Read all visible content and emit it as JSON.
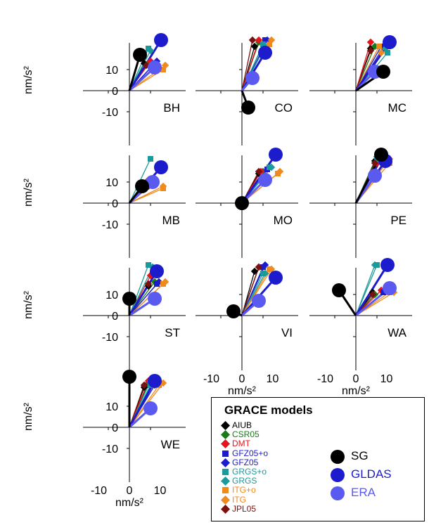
{
  "chart_data": {
    "type": "scatter",
    "description_axes": {
      "ylabel": "nm/s²",
      "xlabel": "nm/s²",
      "ticks": [
        "-10",
        "0",
        "10"
      ]
    },
    "legend": {
      "title": "GRACE models",
      "models": [
        {
          "name": "AIUB",
          "color": "#000000",
          "marker": "diamond"
        },
        {
          "name": "CSR05",
          "color": "#1a7a1a",
          "marker": "diamond"
        },
        {
          "name": "DMT",
          "color": "#e8141c",
          "marker": "diamond"
        },
        {
          "name": "GFZ05+o",
          "color": "#1c1ccc",
          "marker": "square"
        },
        {
          "name": "GFZ05",
          "color": "#1c1ccc",
          "marker": "diamond"
        },
        {
          "name": "GRGS+o",
          "color": "#1a9a9a",
          "marker": "square"
        },
        {
          "name": "GRGS",
          "color": "#1a9a9a",
          "marker": "diamond"
        },
        {
          "name": "ITG+o",
          "color": "#f08a1c",
          "marker": "square"
        },
        {
          "name": "ITG",
          "color": "#f08a1c",
          "marker": "diamond"
        },
        {
          "name": "JPL05",
          "color": "#7a1010",
          "marker": "diamond"
        }
      ],
      "references": [
        {
          "name": "SG",
          "color": "#000000"
        },
        {
          "name": "GLDAS",
          "color": "#1c1ccc"
        },
        {
          "name": "ERA",
          "color": "#5a5af0"
        }
      ]
    },
    "stations": [
      {
        "name": "BH",
        "row": 0,
        "col": 0,
        "sg": [
          5,
          17
        ],
        "gldas": [
          15,
          24
        ],
        "era": [
          12,
          11
        ],
        "models": [
          [
            7,
            13
          ],
          [
            9,
            13
          ],
          [
            10,
            14
          ],
          [
            12,
            13
          ],
          [
            13,
            14
          ],
          [
            9,
            20
          ],
          [
            10,
            19
          ],
          [
            16,
            10
          ],
          [
            17,
            12
          ],
          [
            8,
            12
          ]
        ]
      },
      {
        "name": "CO",
        "row": 0,
        "col": 1,
        "sg": [
          3,
          -8
        ],
        "gldas": [
          11,
          18
        ],
        "era": [
          5,
          6
        ],
        "models": [
          [
            6,
            21
          ],
          [
            8,
            23
          ],
          [
            8,
            24
          ],
          [
            11,
            24
          ],
          [
            12,
            24
          ],
          [
            10,
            22
          ],
          [
            11,
            21
          ],
          [
            13,
            22
          ],
          [
            14,
            24
          ],
          [
            5,
            24
          ]
        ]
      },
      {
        "name": "MC",
        "row": 0,
        "col": 2,
        "sg": [
          13,
          9
        ],
        "gldas": [
          16,
          23
        ],
        "era": [
          9,
          9
        ],
        "models": [
          [
            7,
            20
          ],
          [
            9,
            21
          ],
          [
            7,
            23
          ],
          [
            12,
            21
          ],
          [
            14,
            22
          ],
          [
            15,
            18
          ],
          [
            14,
            20
          ],
          [
            11,
            21
          ],
          [
            12,
            18
          ],
          [
            7,
            19
          ]
        ]
      },
      {
        "name": "MB",
        "row": 1,
        "col": 0,
        "sg": [
          6,
          8
        ],
        "gldas": [
          15,
          17
        ],
        "era": [
          11,
          10
        ],
        "models": [
          [
            8,
            8
          ],
          [
            9,
            9
          ],
          [
            9,
            11
          ],
          [
            12,
            10
          ],
          [
            12,
            11
          ],
          [
            10,
            21
          ],
          [
            11,
            10
          ],
          [
            16,
            7
          ],
          [
            16,
            8
          ],
          [
            9,
            8
          ]
        ]
      },
      {
        "name": "MO",
        "row": 1,
        "col": 1,
        "sg": [
          0,
          0
        ],
        "gldas": [
          16,
          23
        ],
        "era": [
          11,
          11
        ],
        "models": [
          [
            8,
            14
          ],
          [
            10,
            15
          ],
          [
            9,
            15
          ],
          [
            12,
            16
          ],
          [
            13,
            17
          ],
          [
            13,
            17
          ],
          [
            14,
            17
          ],
          [
            17,
            14
          ],
          [
            18,
            15
          ],
          [
            8,
            15
          ]
        ]
      },
      {
        "name": "PE",
        "row": 1,
        "col": 2,
        "sg": [
          12,
          23
        ],
        "gldas": [
          14,
          20
        ],
        "era": [
          9,
          13
        ],
        "models": [
          [
            9,
            20
          ],
          [
            10,
            22
          ],
          [
            10,
            19
          ],
          [
            12,
            21
          ],
          [
            13,
            22
          ],
          [
            10,
            21
          ],
          [
            10,
            20
          ],
          [
            16,
            19
          ],
          [
            16,
            21
          ],
          [
            9,
            19
          ]
        ]
      },
      {
        "name": "ST",
        "row": 2,
        "col": 0,
        "sg": [
          0,
          8
        ],
        "gldas": [
          13,
          21
        ],
        "era": [
          12,
          8
        ],
        "models": [
          [
            9,
            14
          ],
          [
            12,
            16
          ],
          [
            10,
            19
          ],
          [
            13,
            15
          ],
          [
            14,
            16
          ],
          [
            9,
            24
          ],
          [
            11,
            23
          ],
          [
            16,
            15
          ],
          [
            17,
            16
          ],
          [
            9,
            15
          ]
        ]
      },
      {
        "name": "VI",
        "row": 2,
        "col": 1,
        "sg": [
          -4,
          2
        ],
        "gldas": [
          16,
          18
        ],
        "era": [
          8,
          7
        ],
        "models": [
          [
            6,
            21
          ],
          [
            8,
            23
          ],
          [
            8,
            23
          ],
          [
            10,
            23
          ],
          [
            11,
            24
          ],
          [
            10,
            20
          ],
          [
            11,
            20
          ],
          [
            13,
            22
          ],
          [
            14,
            22
          ],
          [
            8,
            23
          ]
        ]
      },
      {
        "name": "WA",
        "row": 2,
        "col": 2,
        "sg": [
          -8,
          12
        ],
        "gldas": [
          15,
          24
        ],
        "era": [
          16,
          13
        ],
        "models": [
          [
            8,
            11
          ],
          [
            9,
            10
          ],
          [
            12,
            12
          ],
          [
            13,
            11
          ],
          [
            15,
            12
          ],
          [
            10,
            24
          ],
          [
            9,
            24
          ],
          [
            16,
            11
          ],
          [
            18,
            11
          ],
          [
            8,
            10
          ]
        ]
      },
      {
        "name": "WE",
        "row": 3,
        "col": 0,
        "sg": [
          0,
          24
        ],
        "gldas": [
          12,
          22
        ],
        "era": [
          10,
          9
        ],
        "models": [
          [
            7,
            19
          ],
          [
            9,
            21
          ],
          [
            9,
            22
          ],
          [
            11,
            21
          ],
          [
            12,
            20
          ],
          [
            10,
            20
          ],
          [
            10,
            22
          ],
          [
            14,
            20
          ],
          [
            16,
            21
          ],
          [
            7,
            20
          ]
        ]
      }
    ]
  }
}
